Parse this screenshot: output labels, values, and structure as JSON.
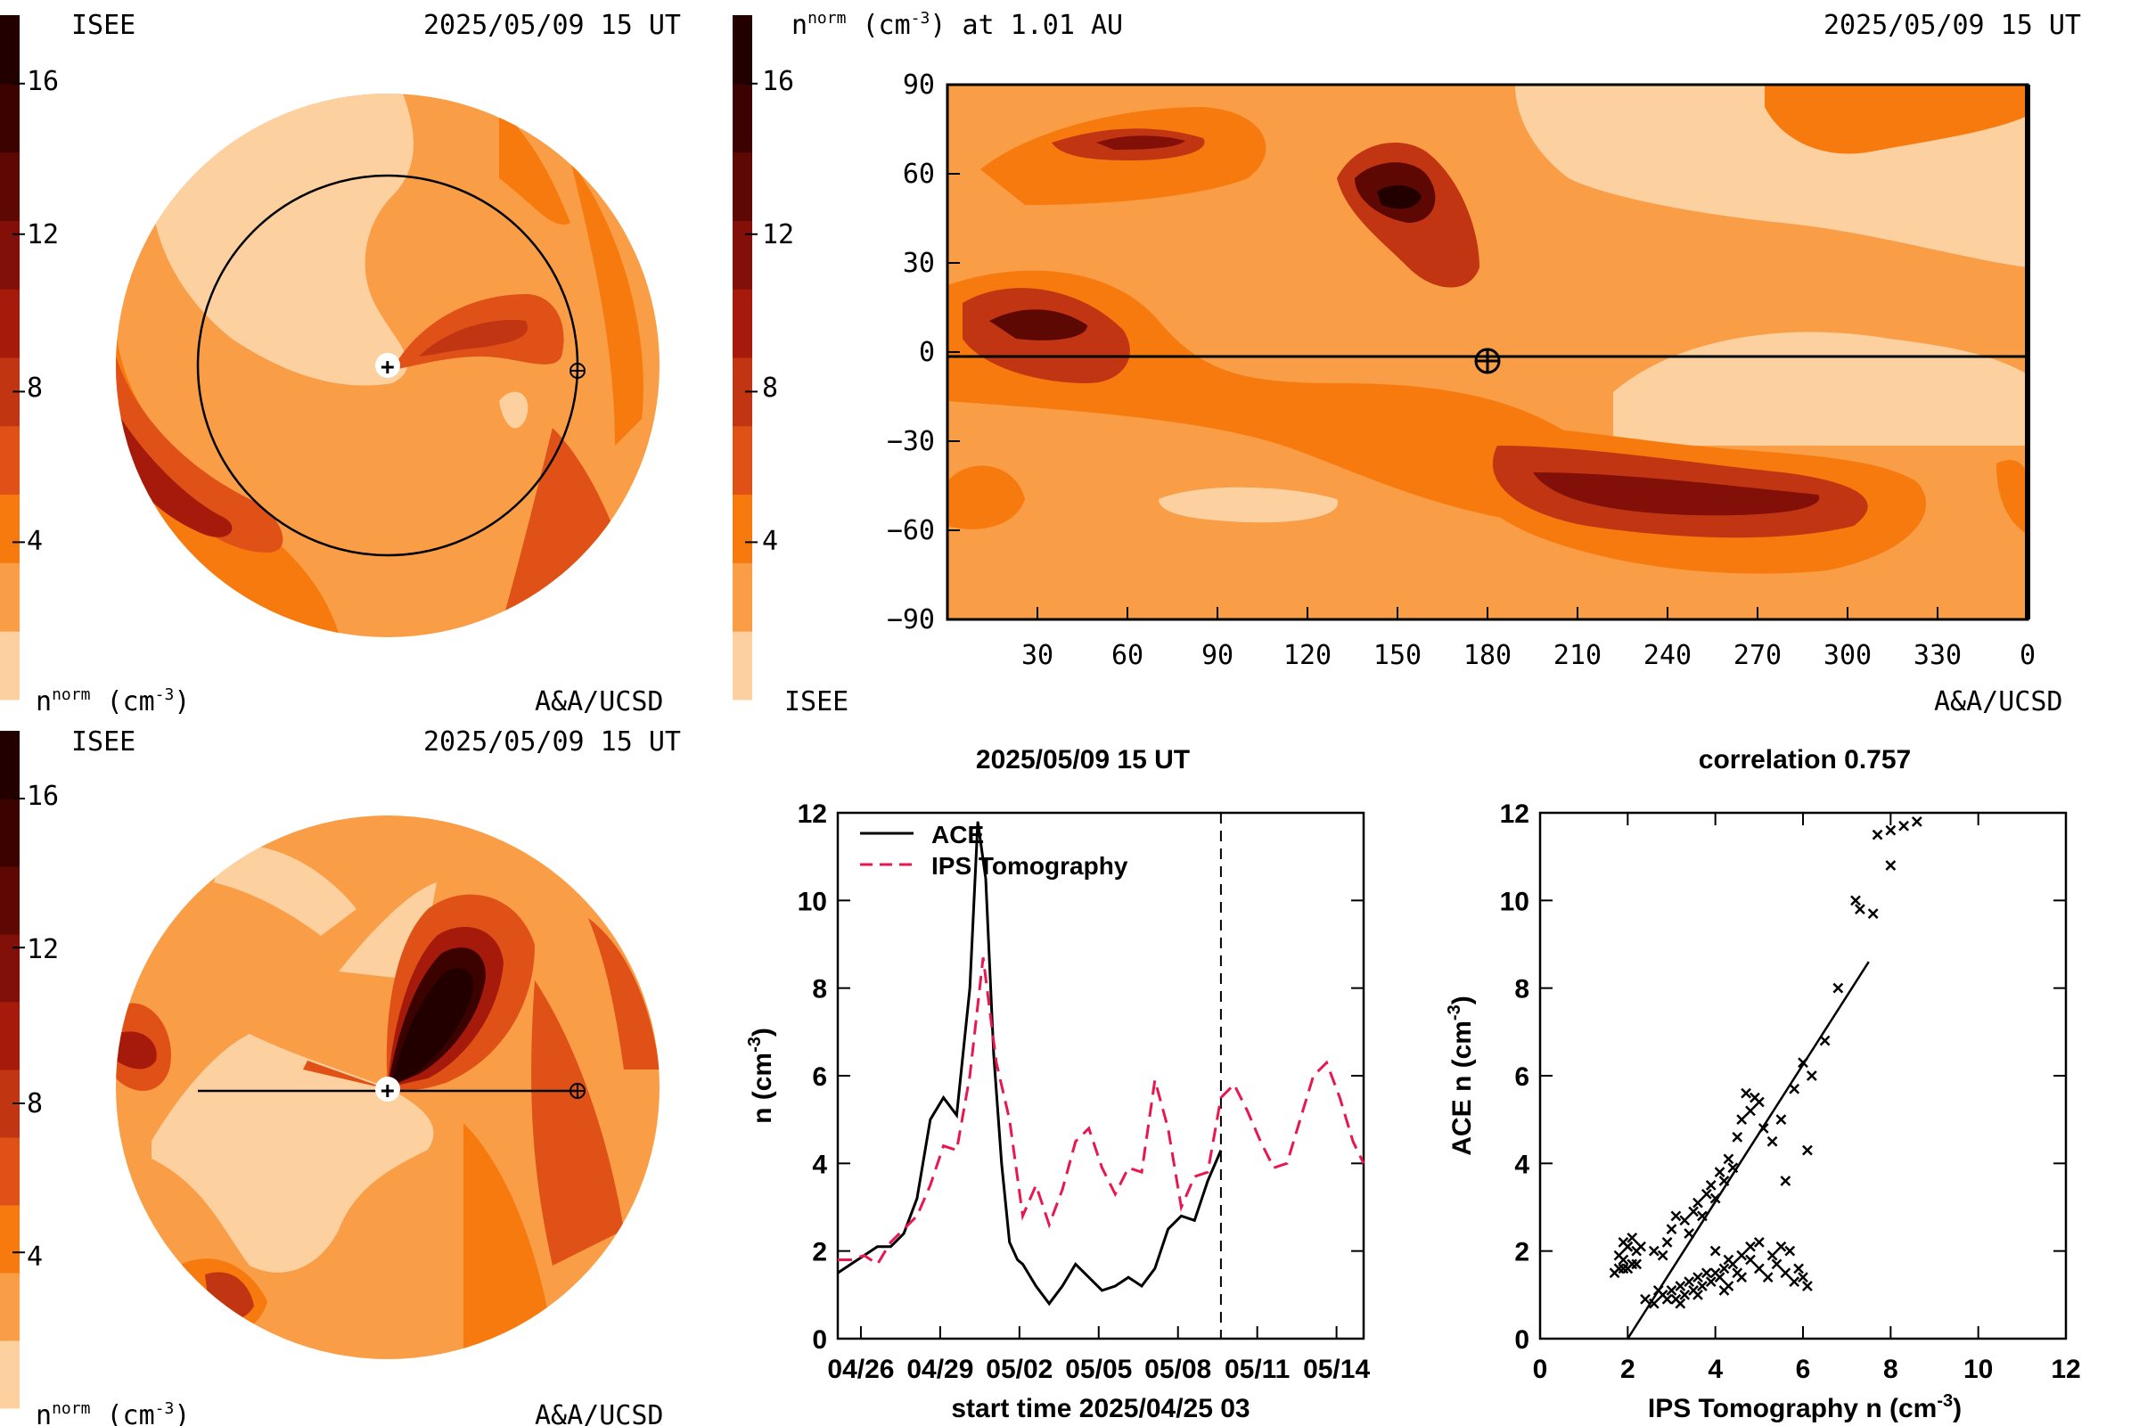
{
  "colors": {
    "scale": [
      "#fdd09f",
      "#f99d46",
      "#f77a0e",
      "#df5117",
      "#c23512",
      "#a61a0c",
      "#821008",
      "#5d0802",
      "#3b0200",
      "#220000"
    ],
    "ips_line": "#e8174f",
    "ace_line": "#000000"
  },
  "panels": {
    "top_left": {
      "org": "ISEE",
      "timestamp": "2025/05/09 15 UT",
      "unit_label": "n^norm (cm^-3)",
      "credit": "A&A/UCSD",
      "colorbar_ticks": [
        "16",
        "12",
        "8",
        "4"
      ]
    },
    "top_right": {
      "title": "n^norm (cm^-3) at 1.01 AU",
      "timestamp": "2025/05/09 15 UT",
      "org": "ISEE",
      "credit": "A&A/UCSD",
      "colorbar_ticks": [
        "16",
        "12",
        "8",
        "4"
      ],
      "lat_ticks": [
        "90",
        "60",
        "30",
        "0",
        "−30",
        "−60",
        "−90"
      ],
      "lon_ticks": [
        "30",
        "60",
        "90",
        "120",
        "150",
        "180",
        "210",
        "240",
        "270",
        "300",
        "330",
        "0"
      ],
      "earth_longitude": 180,
      "earth_latitude": -3
    },
    "bottom_left": {
      "org": "ISEE",
      "timestamp": "2025/05/09 15 UT",
      "unit_label": "n^norm (cm^-3)",
      "credit": "A&A/UCSD",
      "colorbar_ticks": [
        "16",
        "12",
        "8",
        "4"
      ]
    },
    "time_series": {
      "title": "2025/05/09 15 UT",
      "xlabel": "start time 2025/04/25 03",
      "ylabel": "n (cm^-3)",
      "legend": [
        "ACE",
        "IPS Tomography"
      ]
    },
    "scatter": {
      "title": "correlation 0.757",
      "xlabel": "IPS Tomography n (cm^-3)",
      "ylabel": "ACE n (cm^-3)"
    }
  },
  "chart_data": [
    {
      "type": "line",
      "title": "2025/05/09 15 UT",
      "xlabel": "start time 2025/04/25 03",
      "ylabel": "n (cm^-3)",
      "x_ticks": [
        "04/26",
        "04/29",
        "05/02",
        "05/05",
        "05/08",
        "05/11",
        "05/14"
      ],
      "x_tick_days": [
        0.875,
        3.875,
        6.875,
        9.875,
        12.875,
        15.875,
        18.875
      ],
      "xlim_days": [
        0,
        19.9
      ],
      "ylim": [
        0,
        12
      ],
      "y_ticks": [
        0,
        2,
        4,
        6,
        8,
        10,
        12
      ],
      "current_time_day": 14.5,
      "series": [
        {
          "name": "ACE",
          "x": [
            0,
            0.5,
            1,
            1.5,
            2,
            2.5,
            3,
            3.5,
            4,
            4.5,
            5,
            5.3,
            5.6,
            5.9,
            6.2,
            6.5,
            6.8,
            7,
            7.5,
            8,
            8.5,
            9,
            9.5,
            10,
            10.5,
            11,
            11.5,
            12,
            12.5,
            13,
            13.5,
            14,
            14.5
          ],
          "y": [
            1.5,
            1.7,
            1.9,
            2.1,
            2.1,
            2.4,
            3.2,
            5.0,
            5.5,
            5.1,
            8.0,
            11.8,
            10.5,
            6.5,
            4.0,
            2.2,
            1.8,
            1.7,
            1.2,
            0.8,
            1.2,
            1.7,
            1.4,
            1.1,
            1.2,
            1.4,
            1.2,
            1.6,
            2.5,
            2.8,
            2.7,
            3.6,
            4.3
          ]
        },
        {
          "name": "IPS Tomography",
          "x": [
            0,
            0.5,
            1,
            1.5,
            2,
            2.5,
            3,
            3.5,
            4,
            4.5,
            5,
            5.5,
            6,
            6.5,
            7,
            7.5,
            8,
            8.5,
            9,
            9.5,
            10,
            10.5,
            11,
            11.5,
            12,
            12.5,
            13,
            13.5,
            14,
            14.5,
            15,
            15.5,
            16,
            16.5,
            17,
            17.5,
            18,
            18.5,
            19,
            19.5,
            19.9
          ],
          "y": [
            1.8,
            1.8,
            1.9,
            1.7,
            2.2,
            2.5,
            2.8,
            3.5,
            4.4,
            4.3,
            6.0,
            8.7,
            6.3,
            5.0,
            2.8,
            3.5,
            2.6,
            3.4,
            4.5,
            4.8,
            3.9,
            3.3,
            3.9,
            3.8,
            5.9,
            4.8,
            3.0,
            3.7,
            3.8,
            5.5,
            5.8,
            5.2,
            4.5,
            3.9,
            4.0,
            5.0,
            6.0,
            6.3,
            5.5,
            4.5,
            4.0
          ]
        }
      ]
    },
    {
      "type": "scatter",
      "title": "correlation 0.757",
      "xlabel": "IPS Tomography n (cm^-3)",
      "ylabel": "ACE n (cm^-3)",
      "xlim": [
        0,
        12
      ],
      "ylim": [
        0,
        12
      ],
      "x_ticks": [
        0,
        2,
        4,
        6,
        8,
        10,
        12
      ],
      "y_ticks": [
        0,
        2,
        4,
        6,
        8,
        10,
        12
      ],
      "correlation": 0.757,
      "fit_line": [
        [
          2.0,
          0.0
        ],
        [
          7.5,
          8.6
        ]
      ],
      "points": [
        [
          1.7,
          1.5
        ],
        [
          1.8,
          1.6
        ],
        [
          1.9,
          1.6
        ],
        [
          2.0,
          1.6
        ],
        [
          2.1,
          1.7
        ],
        [
          2.2,
          1.7
        ],
        [
          1.9,
          1.8
        ],
        [
          1.8,
          1.9
        ],
        [
          2.0,
          2.1
        ],
        [
          1.9,
          2.2
        ],
        [
          2.0,
          2.1
        ],
        [
          2.2,
          2.0
        ],
        [
          2.3,
          2.1
        ],
        [
          2.1,
          2.3
        ],
        [
          2.6,
          2.0
        ],
        [
          2.8,
          1.9
        ],
        [
          2.9,
          2.2
        ],
        [
          3.0,
          2.5
        ],
        [
          3.1,
          2.8
        ],
        [
          3.3,
          2.7
        ],
        [
          3.4,
          2.4
        ],
        [
          3.5,
          2.9
        ],
        [
          3.6,
          3.1
        ],
        [
          3.7,
          2.8
        ],
        [
          3.8,
          3.3
        ],
        [
          3.9,
          3.5
        ],
        [
          4.0,
          3.2
        ],
        [
          4.1,
          3.8
        ],
        [
          4.2,
          3.6
        ],
        [
          4.3,
          4.1
        ],
        [
          4.4,
          3.9
        ],
        [
          4.5,
          4.6
        ],
        [
          4.6,
          5.0
        ],
        [
          4.7,
          5.6
        ],
        [
          4.8,
          5.2
        ],
        [
          4.9,
          5.5
        ],
        [
          5.0,
          5.4
        ],
        [
          5.1,
          4.8
        ],
        [
          5.3,
          4.5
        ],
        [
          5.5,
          5.0
        ],
        [
          5.8,
          5.7
        ],
        [
          6.0,
          6.3
        ],
        [
          6.2,
          6.0
        ],
        [
          6.5,
          6.8
        ],
        [
          6.8,
          8.0
        ],
        [
          7.2,
          10.0
        ],
        [
          7.6,
          9.7
        ],
        [
          7.7,
          11.5
        ],
        [
          8.0,
          10.8
        ],
        [
          8.3,
          11.7
        ],
        [
          8.6,
          11.8
        ],
        [
          8.0,
          11.6
        ],
        [
          7.3,
          9.8
        ],
        [
          6.1,
          4.3
        ],
        [
          5.6,
          3.6
        ],
        [
          4.3,
          1.8
        ],
        [
          4.0,
          2.0
        ],
        [
          2.4,
          0.9
        ],
        [
          2.6,
          0.8
        ],
        [
          2.8,
          1.0
        ],
        [
          3.0,
          1.1
        ],
        [
          3.1,
          0.9
        ],
        [
          3.2,
          1.2
        ],
        [
          3.3,
          1.0
        ],
        [
          3.4,
          1.3
        ],
        [
          3.5,
          1.1
        ],
        [
          3.6,
          1.4
        ],
        [
          3.7,
          1.2
        ],
        [
          3.8,
          1.5
        ],
        [
          3.9,
          1.3
        ],
        [
          4.0,
          1.5
        ],
        [
          4.1,
          1.4
        ],
        [
          4.2,
          1.6
        ],
        [
          4.3,
          1.2
        ],
        [
          4.4,
          1.7
        ],
        [
          4.5,
          1.5
        ],
        [
          4.6,
          1.4
        ],
        [
          4.8,
          1.8
        ],
        [
          5.0,
          1.6
        ],
        [
          5.2,
          1.4
        ],
        [
          5.4,
          1.7
        ],
        [
          5.6,
          1.5
        ],
        [
          5.8,
          1.3
        ],
        [
          6.0,
          1.4
        ],
        [
          6.1,
          1.2
        ],
        [
          5.9,
          1.6
        ],
        [
          5.7,
          2.0
        ],
        [
          5.5,
          2.1
        ],
        [
          5.3,
          1.9
        ],
        [
          5.0,
          2.2
        ],
        [
          4.8,
          2.1
        ],
        [
          4.6,
          1.9
        ],
        [
          2.7,
          1.1
        ],
        [
          2.9,
          0.9
        ],
        [
          3.2,
          0.8
        ],
        [
          3.6,
          1.0
        ],
        [
          4.2,
          1.1
        ]
      ]
    }
  ]
}
